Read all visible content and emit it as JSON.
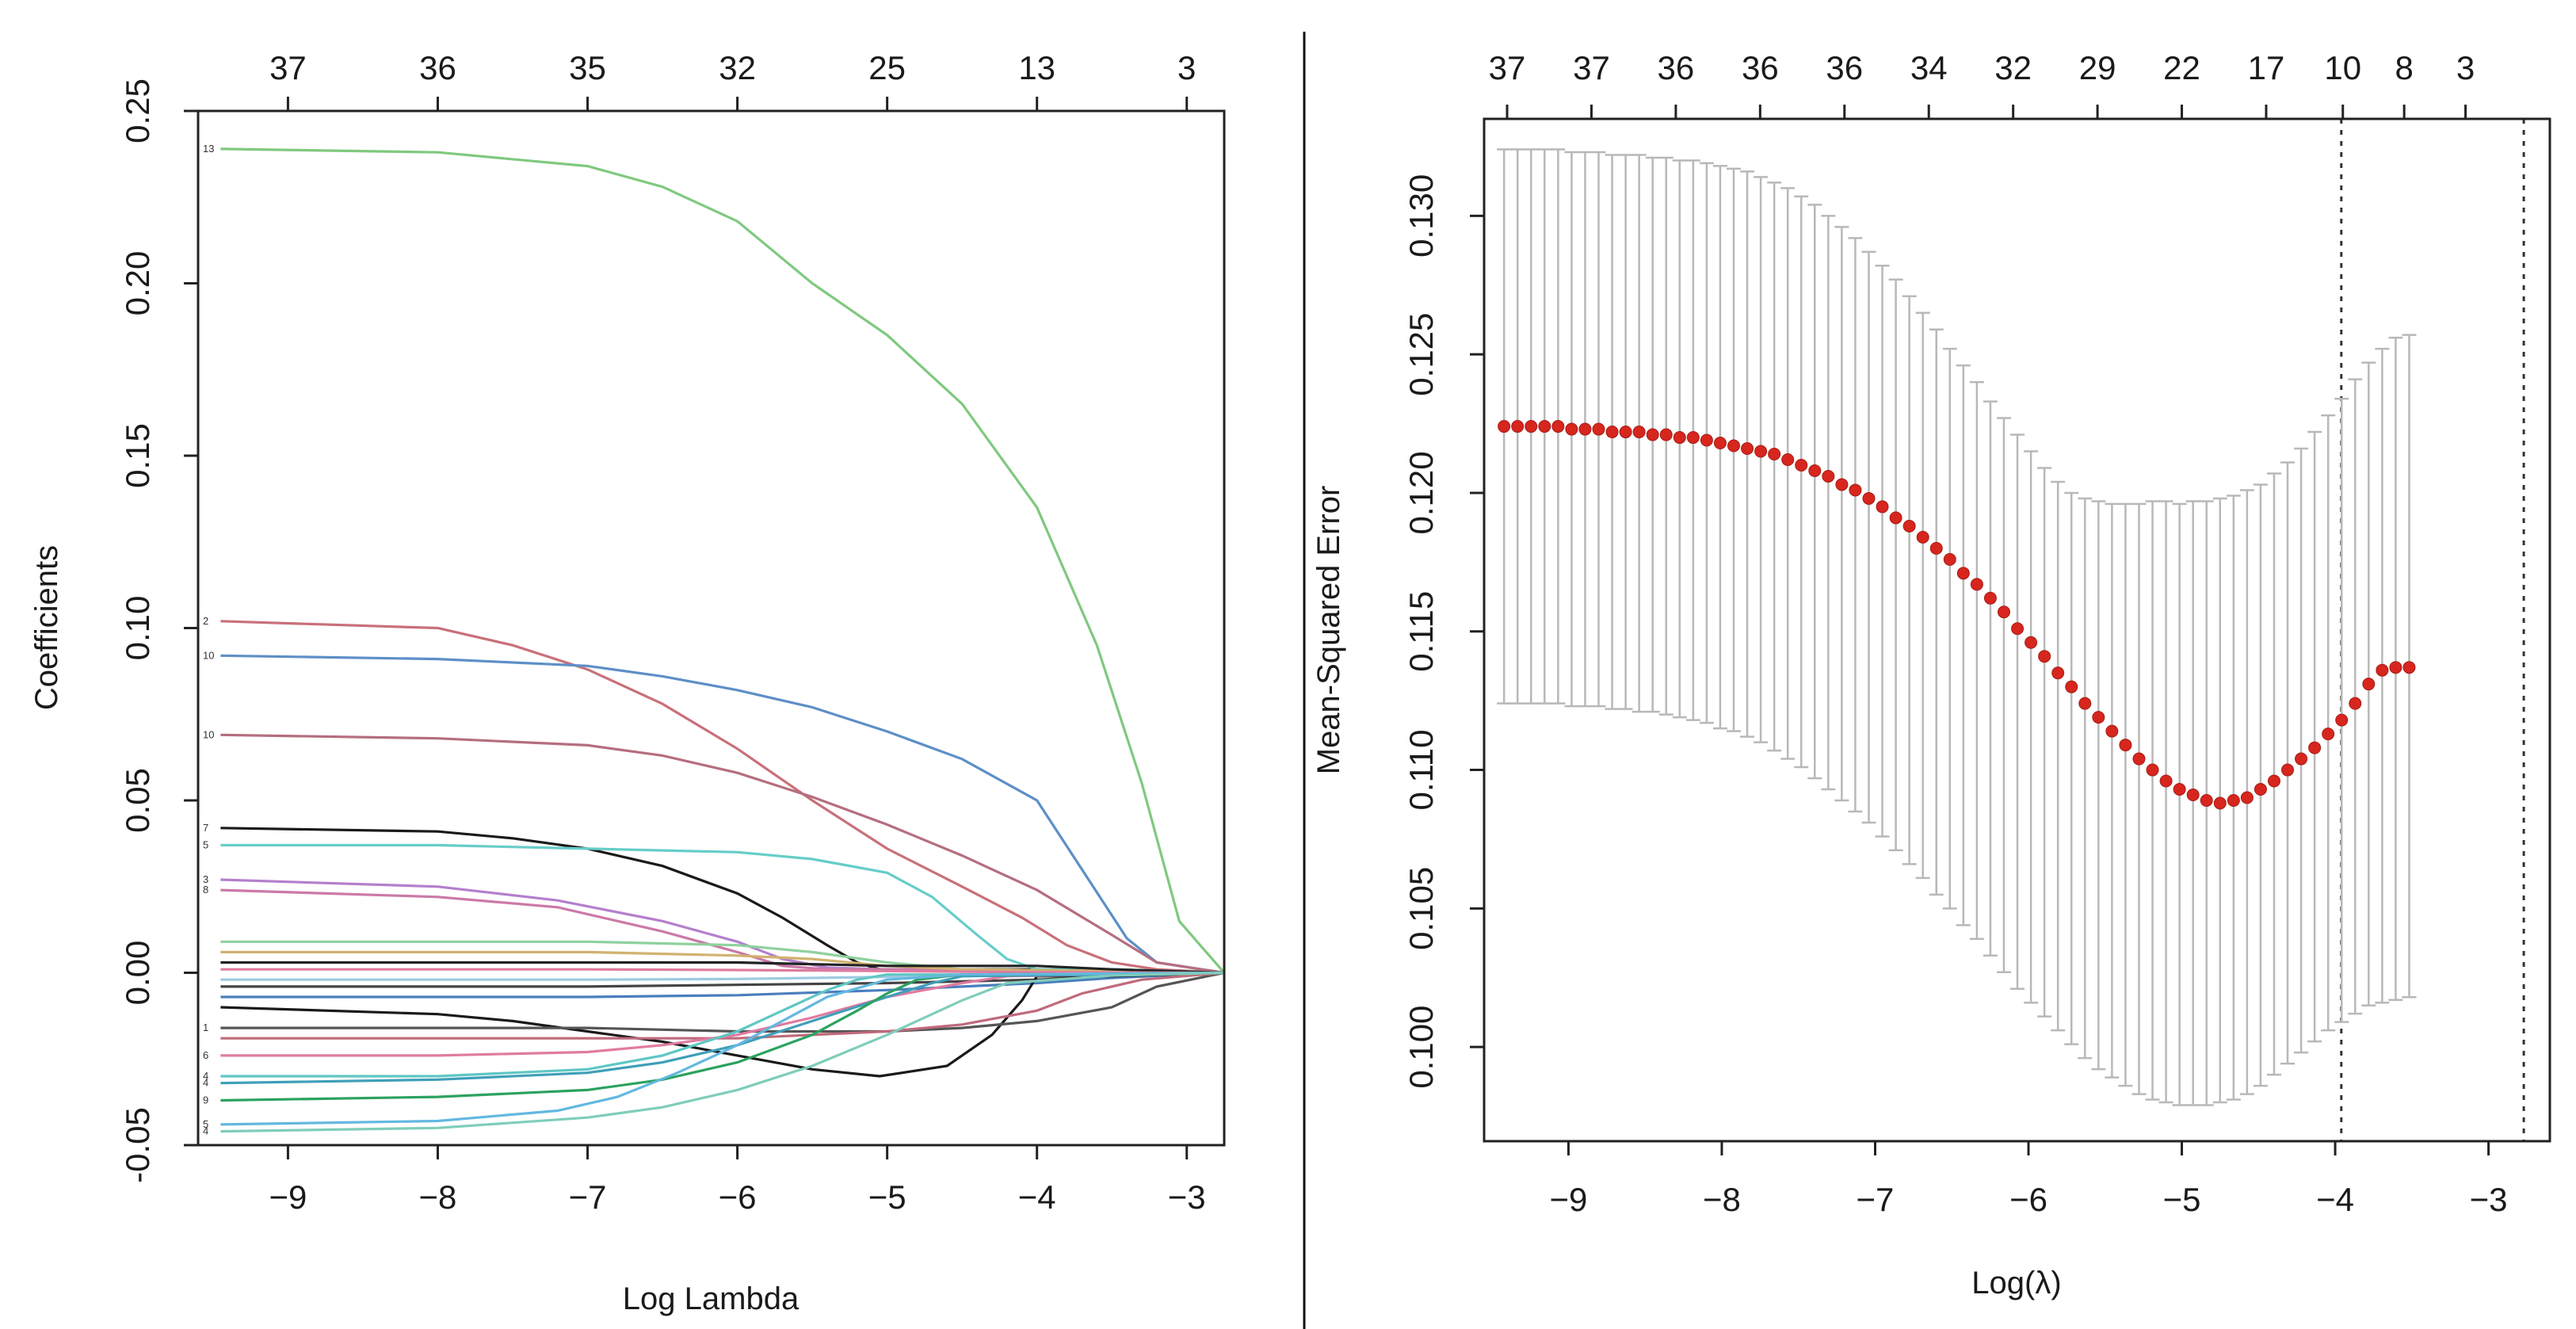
{
  "chart_data": [
    {
      "type": "line",
      "title": "",
      "xlabel": "Log Lambda",
      "ylabel": "Coefficients",
      "xlim": [
        -9.6,
        -2.75
      ],
      "ylim": [
        -0.05,
        0.25
      ],
      "x_ticks": [
        -9,
        -8,
        -7,
        -6,
        -5,
        -4,
        -3
      ],
      "x_tick_labels": [
        "−9",
        "−8",
        "−7",
        "−6",
        "−5",
        "−4",
        "−3"
      ],
      "y_ticks": [
        -0.05,
        0.0,
        0.05,
        0.1,
        0.15,
        0.2,
        0.25
      ],
      "y_tick_labels": [
        "-0.05",
        "0.00",
        "0.05",
        "0.10",
        "0.15",
        "0.20",
        "0.25"
      ],
      "top_axis": {
        "positions": [
          -9,
          -8,
          -7,
          -6,
          -5,
          -4,
          -3
        ],
        "labels": [
          "37",
          "36",
          "35",
          "32",
          "25",
          "13",
          "3"
        ]
      },
      "series": [
        {
          "name": "13",
          "color": "#7fc97f",
          "x": [
            -9.45,
            -8,
            -7,
            -6.5,
            -6,
            -5.5,
            -5,
            -4.5,
            -4,
            -3.6,
            -3.3,
            -3.05,
            -2.75
          ],
          "values": [
            0.239,
            0.238,
            0.234,
            0.228,
            0.218,
            0.2,
            0.185,
            0.165,
            0.135,
            0.095,
            0.055,
            0.015,
            0.0
          ]
        },
        {
          "name": "2",
          "color": "#c9707a",
          "x": [
            -9.45,
            -8,
            -7.5,
            -7,
            -6.5,
            -6,
            -5.5,
            -5,
            -4.5,
            -4.1,
            -3.8,
            -3.5,
            -3.2,
            -2.75
          ],
          "values": [
            0.102,
            0.1,
            0.095,
            0.088,
            0.078,
            0.065,
            0.05,
            0.036,
            0.025,
            0.016,
            0.008,
            0.003,
            0.001,
            0.0
          ]
        },
        {
          "name": "10",
          "color": "#5d8fc7",
          "x": [
            -9.45,
            -8,
            -7,
            -6.5,
            -6,
            -5.5,
            -5,
            -4.5,
            -4,
            -3.7,
            -3.4,
            -3.2,
            -2.75
          ],
          "values": [
            0.092,
            0.091,
            0.089,
            0.086,
            0.082,
            0.077,
            0.07,
            0.062,
            0.05,
            0.03,
            0.01,
            0.003,
            0.0
          ]
        },
        {
          "name": "10",
          "color": "#b56e7e",
          "x": [
            -9.45,
            -8,
            -7,
            -6.5,
            -6,
            -5.5,
            -5,
            -4.5,
            -4,
            -3.5,
            -3.2,
            -2.75
          ],
          "values": [
            0.069,
            0.068,
            0.066,
            0.063,
            0.058,
            0.051,
            0.043,
            0.034,
            0.024,
            0.011,
            0.003,
            0.0
          ]
        },
        {
          "name": "7",
          "color": "#1a1a1a",
          "x": [
            -9.45,
            -8,
            -7.5,
            -7,
            -6.5,
            -6,
            -5.7,
            -5.4,
            -5.2,
            -5.05,
            -4.5,
            -4,
            -3.5,
            -2.75
          ],
          "values": [
            0.042,
            0.041,
            0.039,
            0.036,
            0.031,
            0.023,
            0.016,
            0.008,
            0.003,
            0.001,
            0.001,
            0.001,
            0.001,
            0.0
          ]
        },
        {
          "name": "5",
          "color": "#66cdc8",
          "x": [
            -9.45,
            -8,
            -7,
            -6,
            -5.5,
            -5,
            -4.7,
            -4.4,
            -4.2,
            -4.0,
            -3.5,
            -2.75
          ],
          "values": [
            0.037,
            0.037,
            0.036,
            0.035,
            0.033,
            0.029,
            0.022,
            0.011,
            0.004,
            0.001,
            0.001,
            0.0
          ]
        },
        {
          "name": "3",
          "color": "#b47fcc",
          "x": [
            -9.45,
            -8,
            -7.2,
            -6.5,
            -6,
            -5.7,
            -5.4,
            -5.0,
            -4.5,
            -3.5,
            -2.75
          ],
          "values": [
            0.027,
            0.025,
            0.021,
            0.015,
            0.009,
            0.004,
            0.0015,
            0.001,
            0.001,
            0.0005,
            0.0
          ]
        },
        {
          "name": "8",
          "color": "#cc79a7",
          "x": [
            -9.45,
            -8,
            -7.2,
            -6.5,
            -6.0,
            -5.7,
            -5.4,
            -4.5,
            -3.5,
            -2.75
          ],
          "values": [
            0.024,
            0.022,
            0.019,
            0.012,
            0.006,
            0.002,
            0.001,
            0.001,
            0.0005,
            0.0
          ]
        },
        {
          "name": "",
          "color": "#8fd19e",
          "x": [
            -9.45,
            -7,
            -6,
            -5.5,
            -5,
            -4.5,
            -3.5,
            -2.75
          ],
          "values": [
            0.009,
            0.009,
            0.008,
            0.006,
            0.003,
            0.001,
            0.0005,
            0.0
          ]
        },
        {
          "name": "",
          "color": "#d1b26f",
          "x": [
            -9.45,
            -7,
            -6,
            -5.5,
            -5,
            -4.5,
            -3.5,
            -2.75
          ],
          "values": [
            0.006,
            0.006,
            0.005,
            0.004,
            0.002,
            0.001,
            0.0005,
            0.0
          ]
        },
        {
          "name": "",
          "color": "#222222",
          "x": [
            -9.45,
            -7,
            -6,
            -5,
            -4,
            -3.5,
            -2.75
          ],
          "values": [
            0.003,
            0.003,
            0.003,
            0.002,
            0.002,
            0.001,
            0.0
          ]
        },
        {
          "name": "",
          "color": "#e07ba0",
          "x": [
            -9.45,
            -7,
            -6,
            -5,
            -4.5,
            -3.5,
            -2.75
          ],
          "values": [
            0.001,
            0.001,
            0.0008,
            0.0005,
            0.0003,
            0.0001,
            0.0
          ]
        },
        {
          "name": "",
          "color": "#9ecae1",
          "x": [
            -9.45,
            -7,
            -6,
            -5,
            -4.5,
            -3.5,
            -2.75
          ],
          "values": [
            -0.002,
            -0.002,
            -0.0018,
            -0.0012,
            -0.0006,
            -0.0002,
            0.0
          ]
        },
        {
          "name": "",
          "color": "#444444",
          "x": [
            -9.45,
            -7,
            -6,
            -5,
            -4,
            -3.5,
            -2.75
          ],
          "values": [
            -0.004,
            -0.004,
            -0.0035,
            -0.003,
            -0.002,
            -0.001,
            0.0
          ]
        },
        {
          "name": "",
          "color": "#4a7ebd",
          "x": [
            -9.45,
            -7,
            -6,
            -5,
            -4,
            -3.5,
            -2.75
          ],
          "values": [
            -0.007,
            -0.007,
            -0.0065,
            -0.005,
            -0.003,
            -0.0015,
            0.0
          ]
        },
        {
          "name": "",
          "color": "#1a1a1a",
          "x": [
            -9.45,
            -8,
            -7.5,
            -7,
            -6.5,
            -6,
            -5.5,
            -5.05,
            -4.6,
            -4.3,
            -4.1,
            -4.0,
            -3.5,
            -2.75
          ],
          "values": [
            -0.01,
            -0.012,
            -0.014,
            -0.017,
            -0.02,
            -0.024,
            -0.028,
            -0.03,
            -0.027,
            -0.018,
            -0.008,
            -0.001,
            -0.001,
            0.0
          ]
        },
        {
          "name": "1",
          "color": "#555555",
          "x": [
            -9.45,
            -8,
            -7,
            -6,
            -5,
            -4.5,
            -4,
            -3.5,
            -3.2,
            -2.75
          ],
          "values": [
            -0.016,
            -0.016,
            -0.016,
            -0.017,
            -0.017,
            -0.016,
            -0.014,
            -0.01,
            -0.004,
            0.0
          ]
        },
        {
          "name": "",
          "color": "#c06a7b",
          "x": [
            -9.45,
            -8,
            -7,
            -6,
            -5.5,
            -5,
            -4.5,
            -4.0,
            -3.7,
            -3.3,
            -2.75
          ],
          "values": [
            -0.019,
            -0.019,
            -0.019,
            -0.019,
            -0.018,
            -0.017,
            -0.015,
            -0.011,
            -0.006,
            -0.002,
            0.0
          ]
        },
        {
          "name": "6",
          "color": "#e07ba0",
          "x": [
            -9.45,
            -8,
            -7,
            -6.5,
            -6,
            -5.5,
            -5,
            -4.5,
            -4.2,
            -3.5,
            -2.75
          ],
          "values": [
            -0.024,
            -0.024,
            -0.023,
            -0.021,
            -0.018,
            -0.013,
            -0.007,
            -0.003,
            -0.001,
            -0.0005,
            0.0
          ]
        },
        {
          "name": "4",
          "color": "#5fc7c4",
          "x": [
            -9.45,
            -8,
            -7,
            -6.5,
            -6,
            -5.7,
            -5.4,
            -5.2,
            -5.0,
            -4.5,
            -3.5,
            -2.75
          ],
          "values": [
            -0.03,
            -0.03,
            -0.028,
            -0.024,
            -0.017,
            -0.011,
            -0.005,
            -0.002,
            -0.0005,
            -0.0005,
            -0.0003,
            0.0
          ]
        },
        {
          "name": "4",
          "color": "#3f9fb8",
          "x": [
            -9.45,
            -8,
            -7,
            -6.5,
            -6,
            -5.5,
            -5,
            -4.7,
            -4.5,
            -3.5,
            -2.75
          ],
          "values": [
            -0.032,
            -0.031,
            -0.029,
            -0.026,
            -0.021,
            -0.014,
            -0.007,
            -0.003,
            -0.001,
            -0.0005,
            0.0
          ]
        },
        {
          "name": "9",
          "color": "#2ca25f",
          "x": [
            -9.45,
            -8,
            -7,
            -6.5,
            -6,
            -5.5,
            -5.2,
            -5.0,
            -4.8,
            -4.5,
            -3.5,
            -2.75
          ],
          "values": [
            -0.037,
            -0.036,
            -0.034,
            -0.031,
            -0.026,
            -0.018,
            -0.011,
            -0.006,
            -0.002,
            -0.0005,
            -0.0003,
            0.0
          ]
        },
        {
          "name": "5",
          "color": "#63b8e0",
          "x": [
            -9.45,
            -8,
            -7.2,
            -6.8,
            -6.4,
            -6.0,
            -5.7,
            -5.4,
            -5.0,
            -4.5,
            -3.5,
            -2.75
          ],
          "values": [
            -0.044,
            -0.043,
            -0.04,
            -0.036,
            -0.029,
            -0.021,
            -0.014,
            -0.007,
            -0.002,
            -0.0005,
            -0.0003,
            0.0
          ]
        },
        {
          "name": "4",
          "color": "#7fcdbb",
          "x": [
            -9.45,
            -8,
            -7,
            -6.5,
            -6,
            -5.5,
            -5.0,
            -4.7,
            -4.5,
            -4.2,
            -3.5,
            -2.75
          ],
          "values": [
            -0.046,
            -0.045,
            -0.042,
            -0.039,
            -0.034,
            -0.027,
            -0.018,
            -0.012,
            -0.008,
            -0.003,
            -0.0008,
            0.0
          ]
        }
      ]
    },
    {
      "type": "scatter",
      "title": "",
      "xlabel": "Log(λ)",
      "ylabel": "Mean-Squared Error",
      "xlim": [
        -9.55,
        -2.6
      ],
      "ylim": [
        0.0966,
        0.1335
      ],
      "x_ticks": [
        -9,
        -8,
        -7,
        -6,
        -5,
        -4,
        -3
      ],
      "x_tick_labels": [
        "−9",
        "−8",
        "−7",
        "−6",
        "−5",
        "−4",
        "−3"
      ],
      "y_ticks": [
        0.1,
        0.105,
        0.11,
        0.115,
        0.12,
        0.125,
        0.13
      ],
      "y_tick_labels": [
        "0.100",
        "0.105",
        "0.110",
        "0.115",
        "0.120",
        "0.125",
        "0.130"
      ],
      "top_axis": {
        "positions": [
          -9.4,
          -8.85,
          -8.3,
          -7.75,
          -7.2,
          -6.65,
          -6.1,
          -5.55,
          -5.0,
          -4.45,
          -3.95,
          -3.55,
          -3.15
        ],
        "labels": [
          "37",
          "37",
          "36",
          "36",
          "36",
          "34",
          "32",
          "29",
          "22",
          "17",
          "10",
          "8",
          "3"
        ]
      },
      "vlines": [
        -3.96,
        -2.77
      ],
      "x_start": -9.42,
      "x_step": 0.0881,
      "mse": [
        0.1224,
        0.1224,
        0.1224,
        0.1224,
        0.1224,
        0.1223,
        0.1223,
        0.1223,
        0.1222,
        0.1222,
        0.1222,
        0.1221,
        0.1221,
        0.122,
        0.122,
        0.1219,
        0.1218,
        0.1217,
        0.1216,
        0.1215,
        0.1214,
        0.1212,
        0.121,
        0.1208,
        0.1206,
        0.1203,
        0.1201,
        0.1198,
        0.1195,
        0.1191,
        0.1188,
        0.1184,
        0.118,
        0.1176,
        0.1171,
        0.1167,
        0.1162,
        0.1157,
        0.1151,
        0.1146,
        0.1141,
        0.1135,
        0.113,
        0.1124,
        0.1119,
        0.1114,
        0.1109,
        0.1104,
        0.11,
        0.1096,
        0.1093,
        0.1091,
        0.1089,
        0.1088,
        0.1089,
        0.109,
        0.1093,
        0.1096,
        0.11,
        0.1104,
        0.1108,
        0.1113,
        0.1118,
        0.1124,
        0.1131,
        0.1136,
        0.1137,
        0.1137
      ],
      "lower": [
        0.1124,
        0.1124,
        0.1124,
        0.1124,
        0.1124,
        0.1123,
        0.1123,
        0.1123,
        0.1122,
        0.1122,
        0.1121,
        0.1121,
        0.112,
        0.1119,
        0.1118,
        0.1117,
        0.1115,
        0.1114,
        0.1112,
        0.111,
        0.1107,
        0.1104,
        0.1101,
        0.1097,
        0.1093,
        0.1089,
        0.1085,
        0.1081,
        0.1076,
        0.1071,
        0.1066,
        0.1061,
        0.1055,
        0.105,
        0.1044,
        0.1039,
        0.1033,
        0.1027,
        0.1021,
        0.1016,
        0.1011,
        0.1006,
        0.1001,
        0.0996,
        0.0992,
        0.0989,
        0.0986,
        0.0983,
        0.0981,
        0.098,
        0.0979,
        0.0979,
        0.0979,
        0.098,
        0.0981,
        0.0983,
        0.0986,
        0.099,
        0.0994,
        0.0998,
        0.1002,
        0.1006,
        0.1009,
        0.1012,
        0.1015,
        0.1016,
        0.1017,
        0.1018
      ],
      "upper": [
        0.1324,
        0.1324,
        0.1324,
        0.1324,
        0.1324,
        0.1323,
        0.1323,
        0.1323,
        0.1322,
        0.1322,
        0.1322,
        0.1321,
        0.1321,
        0.132,
        0.132,
        0.1319,
        0.1318,
        0.1317,
        0.1316,
        0.1314,
        0.1312,
        0.131,
        0.1307,
        0.1304,
        0.13,
        0.1296,
        0.1292,
        0.1287,
        0.1282,
        0.1277,
        0.1271,
        0.1265,
        0.1259,
        0.1252,
        0.1246,
        0.124,
        0.1233,
        0.1227,
        0.1221,
        0.1215,
        0.1209,
        0.1204,
        0.12,
        0.1198,
        0.1197,
        0.1196,
        0.1196,
        0.1196,
        0.1197,
        0.1197,
        0.1196,
        0.1197,
        0.1197,
        0.1198,
        0.1199,
        0.1201,
        0.1203,
        0.1207,
        0.1211,
        0.1216,
        0.1222,
        0.1228,
        0.1234,
        0.1241,
        0.1247,
        0.1252,
        0.1256,
        0.1257
      ],
      "point_color": "#d7261e",
      "bar_color": "#b8b8b8"
    }
  ]
}
